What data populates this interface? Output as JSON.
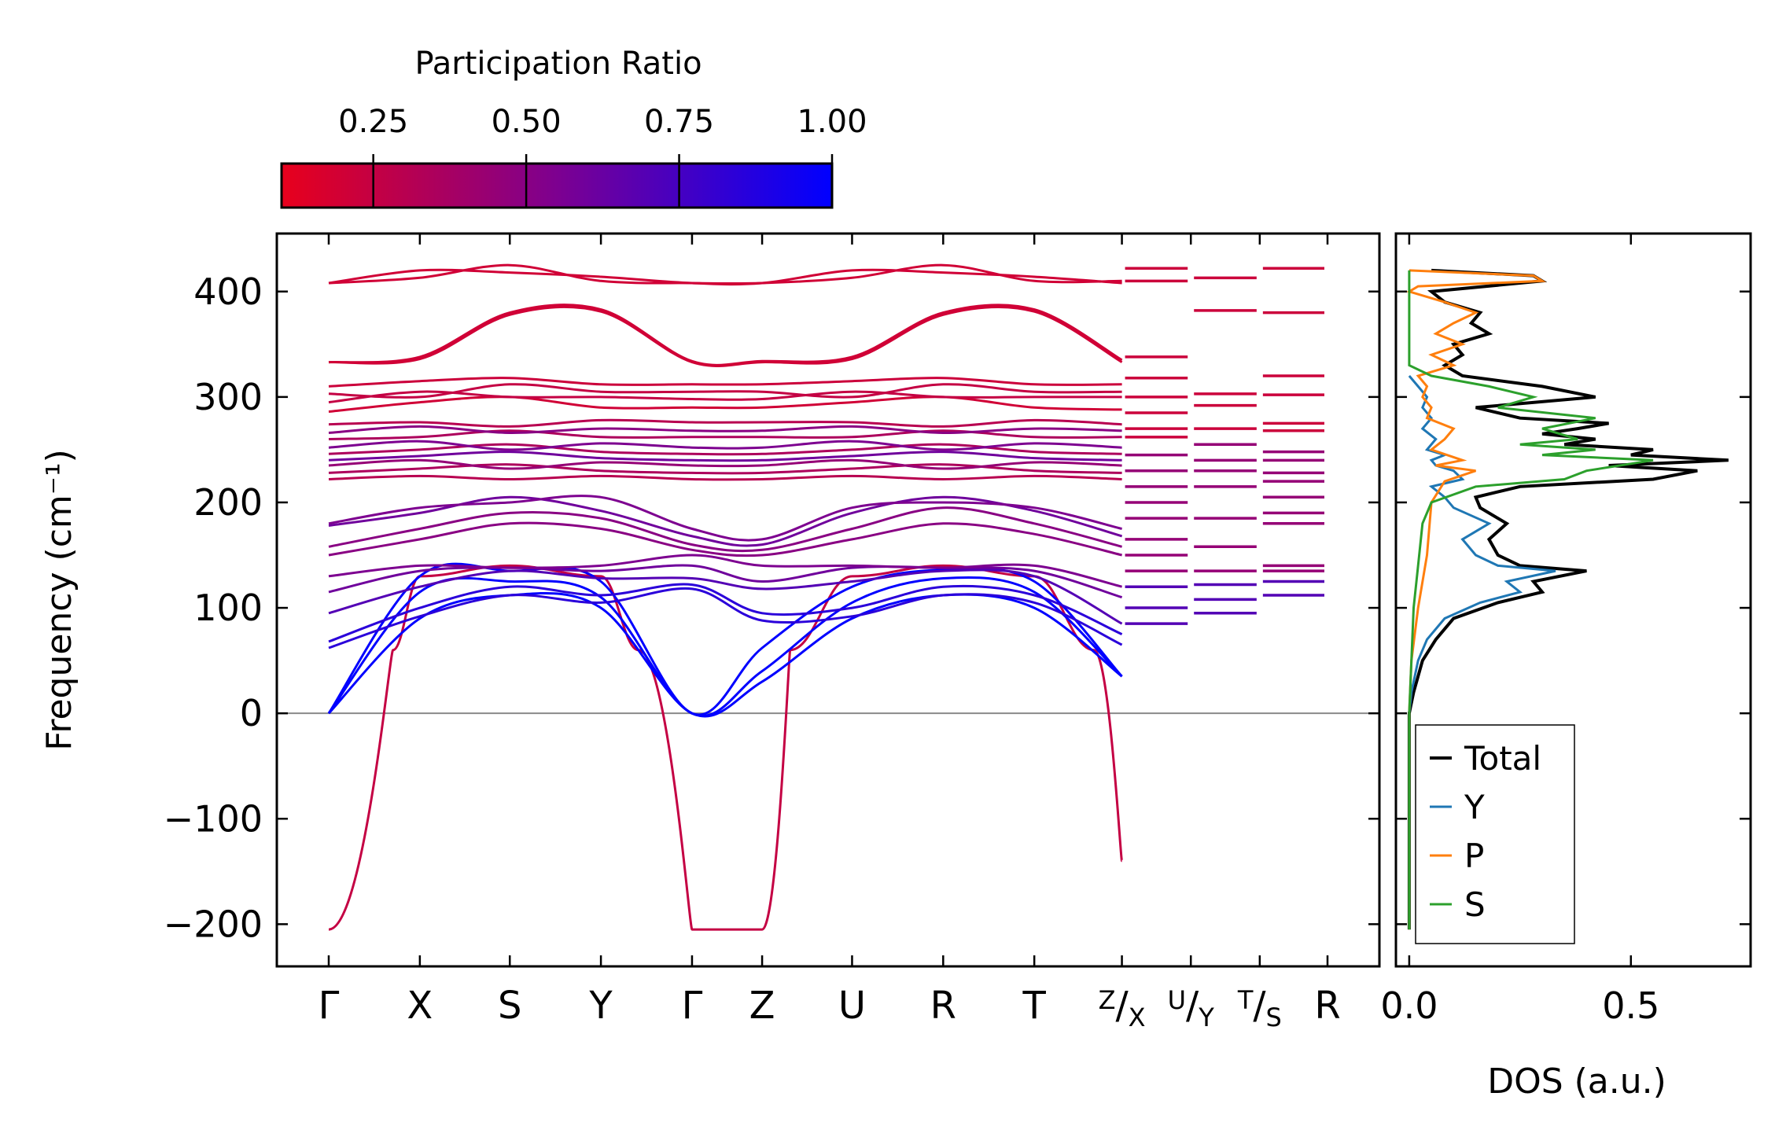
{
  "colorbar": {
    "title": "Participation Ratio",
    "ticks": [
      0.25,
      0.5,
      0.75,
      1.0
    ],
    "tick_labels": [
      "0.25",
      "0.50",
      "0.75",
      "1.00"
    ],
    "range": [
      0.1,
      1.0
    ],
    "color_low": "#e8001c",
    "color_mid": "#7d0090",
    "color_high": "#0000ff"
  },
  "chart_data": [
    {
      "type": "line",
      "name": "phonon-band-structure",
      "ylabel": "Frequency (cm⁻¹)",
      "ylim": [
        -240,
        455
      ],
      "y_ticks": [
        -200,
        -100,
        0,
        100,
        200,
        300,
        400
      ],
      "y_tick_labels": [
        "−200",
        "−100",
        "0",
        "100",
        "200",
        "300",
        "400"
      ],
      "zero_line": true,
      "kpath_labels": [
        "Γ",
        "X",
        "S",
        "Y",
        "Γ",
        "Z",
        "U",
        "R",
        "T",
        "Z|X",
        "U|Y",
        "T|S",
        "R"
      ],
      "kpath_label_parts": [
        {
          "main": "Γ"
        },
        {
          "main": "X"
        },
        {
          "main": "S"
        },
        {
          "main": "Y"
        },
        {
          "main": "Γ"
        },
        {
          "main": "Z"
        },
        {
          "main": "U"
        },
        {
          "main": "R"
        },
        {
          "main": "T"
        },
        {
          "sup": "Z",
          "sub": "X"
        },
        {
          "sup": "U",
          "sub": "Y"
        },
        {
          "sup": "T",
          "sub": "S"
        },
        {
          "main": "R"
        }
      ],
      "kpath_distance": [
        0,
        0.78,
        1.55,
        2.33,
        3.11,
        3.71,
        4.48,
        5.26,
        6.04,
        6.79,
        7.38,
        7.97,
        8.55
      ],
      "continuous_segments": [
        0,
        1,
        2,
        3,
        4,
        5,
        6,
        7,
        8
      ],
      "flat_segments": [
        9,
        10,
        11
      ],
      "branches": [
        {
          "name": "soft-mode",
          "pr": 0.25,
          "values": [
            -205,
            60,
            130,
            140,
            130,
            60,
            -205,
            -205,
            60,
            130,
            140,
            130,
            60,
            -140
          ]
        },
        {
          "name": "acoustic-1",
          "pr": 1.0,
          "values": [
            0,
            90,
            112,
            100,
            0,
            30,
            90,
            112,
            100,
            35
          ]
        },
        {
          "name": "acoustic-2",
          "pr": 1.0,
          "values": [
            0,
            115,
            125,
            110,
            0,
            40,
            105,
            128,
            115,
            35
          ]
        },
        {
          "name": "acoustic-3",
          "pr": 1.0,
          "values": [
            0,
            130,
            135,
            125,
            0,
            62,
            120,
            136,
            125,
            35
          ]
        },
        {
          "name": "low-optic-1",
          "pr": 0.85,
          "values": [
            62,
            92,
            112,
            105,
            118,
            88,
            92,
            112,
            105,
            65
          ]
        },
        {
          "name": "low-optic-2",
          "pr": 0.85,
          "values": [
            68,
            100,
            120,
            112,
            122,
            95,
            100,
            120,
            112,
            75
          ]
        },
        {
          "name": "low-optic-3",
          "pr": 0.7,
          "values": [
            95,
            120,
            135,
            128,
            128,
            118,
            125,
            135,
            130,
            85
          ]
        },
        {
          "name": "low-optic-4",
          "pr": 0.6,
          "values": [
            115,
            135,
            138,
            135,
            140,
            125,
            138,
            138,
            135,
            110
          ]
        },
        {
          "name": "low-optic-5",
          "pr": 0.55,
          "values": [
            130,
            140,
            138,
            140,
            150,
            140,
            140,
            138,
            140,
            120
          ]
        },
        {
          "name": "mid-1",
          "pr": 0.5,
          "values": [
            150,
            165,
            180,
            175,
            155,
            150,
            165,
            180,
            170,
            150
          ]
        },
        {
          "name": "mid-2",
          "pr": 0.5,
          "values": [
            158,
            175,
            190,
            185,
            160,
            155,
            175,
            195,
            180,
            158
          ]
        },
        {
          "name": "mid-3",
          "pr": 0.6,
          "values": [
            178,
            190,
            205,
            192,
            168,
            160,
            190,
            205,
            192,
            168
          ]
        },
        {
          "name": "mid-4",
          "pr": 0.55,
          "values": [
            180,
            195,
            200,
            205,
            175,
            165,
            195,
            200,
            195,
            175
          ]
        },
        {
          "name": "band-222",
          "pr": 0.3,
          "values": [
            222,
            225,
            222,
            225,
            222,
            222,
            225,
            222,
            225,
            222
          ]
        },
        {
          "name": "band-228",
          "pr": 0.35,
          "values": [
            228,
            232,
            236,
            230,
            228,
            228,
            232,
            236,
            230,
            228
          ]
        },
        {
          "name": "band-235",
          "pr": 0.45,
          "values": [
            235,
            240,
            232,
            238,
            235,
            235,
            240,
            232,
            238,
            235
          ]
        },
        {
          "name": "band-240",
          "pr": 0.6,
          "values": [
            240,
            244,
            248,
            242,
            240,
            240,
            244,
            248,
            242,
            240
          ]
        },
        {
          "name": "band-246",
          "pr": 0.35,
          "values": [
            246,
            250,
            255,
            248,
            246,
            246,
            250,
            255,
            248,
            246
          ]
        },
        {
          "name": "band-252",
          "pr": 0.55,
          "values": [
            252,
            258,
            250,
            256,
            252,
            252,
            258,
            250,
            256,
            252
          ]
        },
        {
          "name": "band-260",
          "pr": 0.35,
          "values": [
            260,
            262,
            268,
            262,
            262,
            262,
            262,
            268,
            262,
            262
          ]
        },
        {
          "name": "band-266",
          "pr": 0.5,
          "values": [
            266,
            272,
            266,
            270,
            268,
            268,
            272,
            266,
            270,
            268
          ]
        },
        {
          "name": "band-274",
          "pr": 0.3,
          "values": [
            274,
            276,
            272,
            278,
            276,
            276,
            276,
            272,
            278,
            274
          ]
        },
        {
          "name": "band-286",
          "pr": 0.2,
          "values": [
            286,
            295,
            300,
            290,
            290,
            290,
            295,
            300,
            290,
            288
          ]
        },
        {
          "name": "band-295",
          "pr": 0.25,
          "values": [
            295,
            305,
            300,
            300,
            298,
            298,
            305,
            300,
            300,
            300
          ]
        },
        {
          "name": "band-303",
          "pr": 0.25,
          "values": [
            303,
            300,
            312,
            305,
            305,
            305,
            300,
            312,
            305,
            305
          ]
        },
        {
          "name": "band-310",
          "pr": 0.22,
          "values": [
            310,
            315,
            318,
            312,
            312,
            312,
            315,
            318,
            312,
            312
          ]
        },
        {
          "name": "high-1",
          "pr": 0.2,
          "values": [
            333,
            336,
            378,
            381,
            333,
            333,
            336,
            378,
            381,
            333
          ]
        },
        {
          "name": "high-2",
          "pr": 0.2,
          "values": [
            333,
            338,
            380,
            383,
            334,
            334,
            338,
            380,
            383,
            335
          ]
        },
        {
          "name": "top-1",
          "pr": 0.2,
          "values": [
            408,
            420,
            418,
            414,
            408,
            408,
            420,
            418,
            414,
            408
          ]
        },
        {
          "name": "top-2",
          "pr": 0.2,
          "values": [
            408,
            413,
            425,
            410,
            408,
            408,
            413,
            425,
            410,
            410
          ]
        }
      ],
      "flat_levels": [
        {
          "segment": 9,
          "values": [
            85,
            100,
            120,
            135,
            150,
            165,
            185,
            200,
            215,
            230,
            245,
            262,
            270,
            285,
            300,
            318,
            338,
            410,
            422
          ]
        },
        {
          "segment": 10,
          "values": [
            95,
            108,
            122,
            135,
            158,
            185,
            215,
            230,
            240,
            255,
            270,
            292,
            303,
            382,
            413
          ]
        },
        {
          "segment": 11,
          "values": [
            112,
            125,
            135,
            140,
            180,
            190,
            205,
            220,
            228,
            240,
            248,
            268,
            275,
            302,
            320,
            380,
            422
          ]
        }
      ]
    },
    {
      "type": "line",
      "name": "phonon-dos",
      "xlabel": "DOS (a.u.)",
      "xlim": [
        -0.03,
        0.77
      ],
      "x_ticks": [
        0.0,
        0.5
      ],
      "x_tick_labels": [
        "0.0",
        "0.5"
      ],
      "ylim": [
        -240,
        455
      ],
      "legend_position": "lower-left",
      "series": [
        {
          "name": "Total",
          "color": "#000000",
          "freq": [
            -205,
            0,
            20,
            50,
            70,
            90,
            105,
            115,
            125,
            135,
            140,
            150,
            165,
            180,
            195,
            205,
            215,
            222,
            230,
            235,
            240,
            245,
            250,
            255,
            260,
            265,
            270,
            275,
            280,
            290,
            300,
            310,
            320,
            330,
            340,
            350,
            360,
            370,
            380,
            390,
            400,
            410,
            415,
            420
          ],
          "dos": [
            0,
            0,
            0.01,
            0.03,
            0.06,
            0.1,
            0.2,
            0.3,
            0.28,
            0.4,
            0.25,
            0.2,
            0.18,
            0.22,
            0.16,
            0.15,
            0.25,
            0.55,
            0.65,
            0.45,
            0.72,
            0.5,
            0.55,
            0.35,
            0.42,
            0.3,
            0.38,
            0.45,
            0.25,
            0.15,
            0.42,
            0.3,
            0.12,
            0.08,
            0.12,
            0.1,
            0.18,
            0.14,
            0.16,
            0.08,
            0.05,
            0.3,
            0.28,
            0.05
          ]
        },
        {
          "name": "Y",
          "color": "#1f77b4",
          "freq": [
            -205,
            0,
            20,
            50,
            70,
            90,
            105,
            115,
            125,
            135,
            140,
            150,
            165,
            180,
            195,
            205,
            215,
            222,
            230,
            235,
            240,
            245,
            250,
            260,
            270,
            280,
            290,
            300,
            310,
            320
          ],
          "dos": [
            0,
            0,
            0.005,
            0.02,
            0.04,
            0.08,
            0.16,
            0.25,
            0.22,
            0.33,
            0.2,
            0.15,
            0.12,
            0.18,
            0.1,
            0.08,
            0.05,
            0.12,
            0.1,
            0.06,
            0.05,
            0.08,
            0.04,
            0.06,
            0.03,
            0.05,
            0.03,
            0.04,
            0.02,
            0.0
          ]
        },
        {
          "name": "P",
          "color": "#ff7f0e",
          "freq": [
            -205,
            0,
            50,
            100,
            150,
            200,
            220,
            230,
            235,
            240,
            250,
            260,
            270,
            280,
            290,
            300,
            310,
            320,
            330,
            340,
            350,
            360,
            370,
            380,
            390,
            400,
            405,
            410,
            415,
            420
          ],
          "dos": [
            0,
            0,
            0.005,
            0.02,
            0.04,
            0.05,
            0.08,
            0.15,
            0.06,
            0.12,
            0.05,
            0.08,
            0.1,
            0.04,
            0.05,
            0.03,
            0.04,
            0.02,
            0.1,
            0.05,
            0.12,
            0.06,
            0.1,
            0.15,
            0.08,
            0.0,
            0.02,
            0.3,
            0.28,
            0.0
          ]
        },
        {
          "name": "S",
          "color": "#2ca02c",
          "freq": [
            -205,
            0,
            50,
            100,
            140,
            180,
            200,
            215,
            222,
            230,
            240,
            245,
            250,
            255,
            260,
            270,
            280,
            290,
            300,
            310,
            320,
            330,
            340,
            360,
            380,
            400,
            420
          ],
          "dos": [
            0,
            0,
            0.005,
            0.01,
            0.02,
            0.03,
            0.05,
            0.15,
            0.35,
            0.4,
            0.55,
            0.3,
            0.42,
            0.25,
            0.38,
            0.3,
            0.42,
            0.2,
            0.28,
            0.18,
            0.05,
            0.0,
            0.0,
            0.0,
            0.0,
            0.0,
            0.0
          ]
        }
      ]
    }
  ]
}
